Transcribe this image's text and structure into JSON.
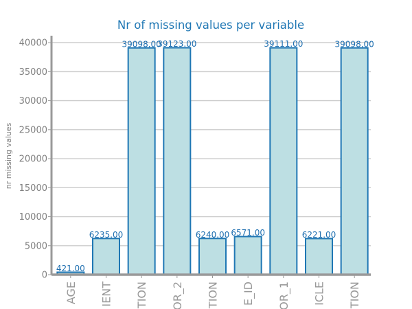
{
  "chart_data": {
    "type": "bar",
    "title": "Nr of missing values per variable",
    "xlabel": "",
    "ylabel": "nr missing values",
    "categories": [
      "AGE",
      "IENT",
      "TION",
      "OR_2",
      "TION",
      "E_ID",
      "OR_1",
      "ICLE",
      "TION"
    ],
    "values": [
      421,
      6235,
      39098,
      39123,
      6240,
      6571,
      39111,
      6221,
      39098
    ],
    "data_labels": [
      "421.00",
      "6235.00",
      "39098.00",
      "39123.00",
      "6240.00",
      "6571.00",
      "39111.00",
      "6221.00",
      "39098.00"
    ],
    "ylim": [
      0,
      41200
    ],
    "yticks": [
      0,
      5000,
      10000,
      15000,
      20000,
      25000,
      30000,
      35000,
      40000
    ],
    "ytick_labels": [
      "0",
      "5000",
      "10000",
      "15000",
      "20000",
      "25000",
      "30000",
      "35000",
      "40000"
    ],
    "grid": true,
    "colors": {
      "bar_fill": "#bddfe3",
      "bar_edge": "#1f77b4",
      "title": "#1f77b4",
      "label": "#1f6fb0",
      "grid": "#cccccc",
      "axis": "#999999"
    }
  }
}
